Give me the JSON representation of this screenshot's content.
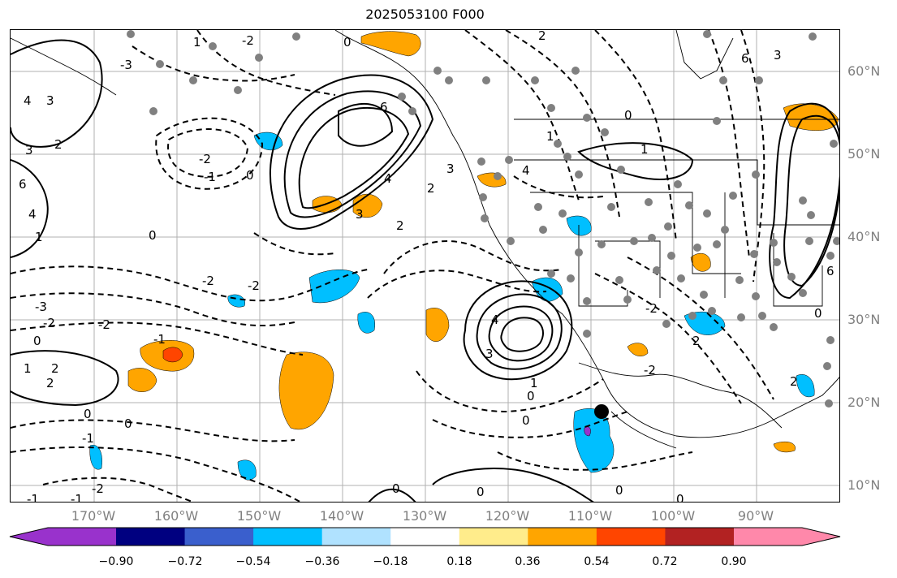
{
  "title": "2025053100 F000",
  "map": {
    "lat_labels": [
      "60°N",
      "50°N",
      "40°N",
      "30°N",
      "20°N",
      "10°N"
    ],
    "lon_labels": [
      "170°W",
      "160°W",
      "150°W",
      "140°W",
      "130°W",
      "120°W",
      "110°W",
      "100°W",
      "90°W"
    ],
    "fill_colors": {
      "cyan": "#00bfff",
      "blue": "#3a5fcd",
      "orange": "#ffa500",
      "red_orange": "#ff4500",
      "violet": "#9932cc"
    },
    "contour_color": "#000000",
    "station_marker_color": "#808080",
    "contour_labels": [
      "6",
      "4",
      "3",
      "2",
      "1",
      "0",
      "-1",
      "-2",
      "-3"
    ]
  },
  "colorbar": {
    "colors": [
      "#9932cc",
      "#000080",
      "#3a5fcd",
      "#00bfff",
      "#b0e2ff",
      "#ffffff",
      "#ffec8b",
      "#ffa500",
      "#ff4500",
      "#b22222",
      "#ff88aa"
    ],
    "tick_labels": [
      "−0.90",
      "−0.72",
      "−0.54",
      "−0.36",
      "−0.18",
      "0.18",
      "0.36",
      "0.54",
      "0.72",
      "0.90"
    ]
  }
}
